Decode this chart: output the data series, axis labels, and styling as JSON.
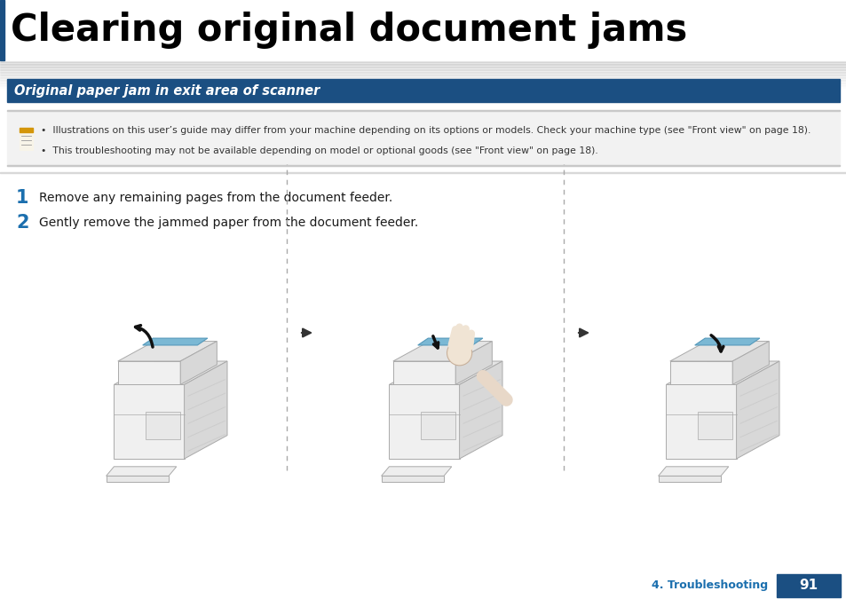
{
  "title": "Clearing original document jams",
  "section_title": "Original paper jam in exit area of scanner",
  "section_bg": "#1b4f82",
  "section_text_color": "#ffffff",
  "note_line1": "Illustrations on this user’s guide may differ from your machine depending on its options or models. Check your machine type (see \"Front view\" on page 18).",
  "note_line2": "This troubleshooting may not be available depending on model or optional goods (see \"Front view\" on page 18).",
  "step1_num": "1",
  "step1_text": "Remove any remaining pages from the document feeder.",
  "step2_num": "2",
  "step2_text": "Gently remove the jammed paper from the document feeder.",
  "footer_text": "4. Troubleshooting",
  "page_num": "91",
  "page_bg": "#1b4f82",
  "page_text_color": "#ffffff",
  "title_color": "#000000",
  "step_num_color": "#1b6fae",
  "body_bg": "#ffffff",
  "left_bar_color": "#1b4f82",
  "title_fontsize": 30,
  "section_fontsize": 10.5,
  "note_fontsize": 7.8,
  "step_fontsize": 10,
  "step_num_fontsize": 15
}
